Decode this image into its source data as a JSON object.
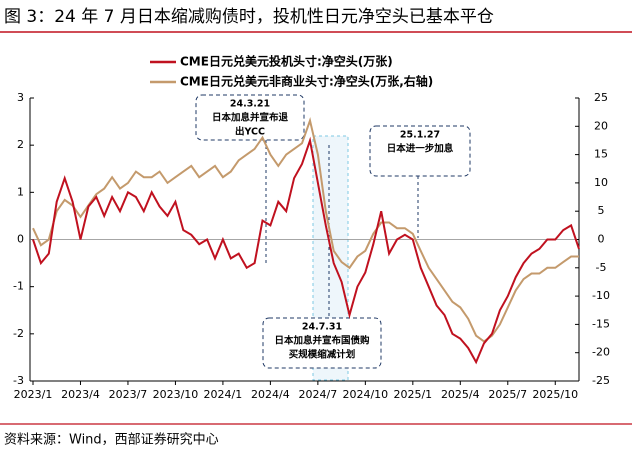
{
  "title": "图 3：24 年 7 月日本缩减购债时，投机性日元净空头已基本平仓",
  "source": "资料来源：Wind，西部证券研究中心",
  "chart_data": {
    "type": "line",
    "categories": [
      "2023/1",
      null,
      null,
      null,
      null,
      null,
      "2023/4",
      null,
      null,
      null,
      null,
      null,
      "2023/7",
      null,
      null,
      null,
      null,
      null,
      "2023/10",
      null,
      null,
      null,
      null,
      null,
      "2024/1",
      null,
      null,
      null,
      null,
      null,
      "2024/4",
      null,
      null,
      null,
      null,
      null,
      "2024/7",
      null,
      null,
      null,
      null,
      null,
      "2024/10",
      null,
      null,
      null,
      null,
      null,
      "2025/1",
      null,
      null,
      null,
      null,
      null,
      "2025/4",
      null,
      null,
      null,
      null,
      null,
      "2025/7",
      null,
      null,
      null,
      null,
      null,
      "2025/10",
      null,
      null,
      null
    ],
    "series": [
      {
        "name": "CME日元兑美元投机头寸:净空头(万张)",
        "color": "#c0111f",
        "axis": "y",
        "values": [
          0,
          -0.5,
          -0.3,
          0.8,
          1.3,
          0.8,
          0.0,
          0.7,
          0.9,
          0.5,
          0.9,
          0.6,
          1.0,
          0.9,
          0.6,
          1.0,
          0.7,
          0.5,
          0.8,
          0.2,
          0.1,
          -0.1,
          0.0,
          -0.4,
          0.0,
          -0.4,
          -0.3,
          -0.6,
          -0.5,
          0.4,
          0.3,
          0.8,
          0.6,
          1.3,
          1.6,
          2.1,
          1.2,
          0.3,
          -0.5,
          -0.9,
          -1.6,
          -1.0,
          -0.7,
          -0.1,
          0.6,
          -0.3,
          0.0,
          0.1,
          0.0,
          -0.6,
          -1.0,
          -1.4,
          -1.6,
          -2.0,
          -2.1,
          -2.3,
          -2.6,
          -2.2,
          -2.0,
          -1.5,
          -1.2,
          -0.8,
          -0.5,
          -0.3,
          -0.2,
          0.0,
          0.0,
          0.2,
          0.3,
          -0.2
        ]
      },
      {
        "name": "CME日元兑美元非商业头寸:净空头(万张,右轴)",
        "color": "#c49a6c",
        "axis": "y2",
        "values": [
          2,
          -1,
          0,
          5,
          7,
          6,
          4,
          6,
          8,
          9,
          11,
          9,
          10,
          12,
          11,
          11,
          12,
          10,
          11,
          12,
          13,
          11,
          12,
          13,
          11,
          12,
          14,
          15,
          16,
          18,
          15,
          13,
          15,
          16,
          17,
          21,
          15,
          5,
          -2,
          -4,
          -5,
          -3,
          -2,
          1,
          3,
          3,
          2,
          2,
          1,
          -2,
          -5,
          -7,
          -9,
          -11,
          -12,
          -14,
          -17,
          -18,
          -17,
          -15,
          -12,
          -9,
          -7,
          -6,
          -6,
          -5,
          -5,
          -4,
          -3,
          -3
        ]
      }
    ],
    "ylim": [
      -3,
      3
    ],
    "yticks": [
      3,
      2,
      1,
      0,
      -1,
      -2,
      -3
    ],
    "y2lim": [
      -25,
      25
    ],
    "y2ticks": [
      25,
      20,
      15,
      10,
      5,
      0,
      -5,
      -10,
      -15,
      -20,
      -25
    ],
    "grid": false,
    "legend": "top-left",
    "annotations": [
      {
        "lines": [
          "24.3.21",
          "日本加息并宣布退",
          "出YCC"
        ]
      },
      {
        "lines": [
          "25.1.27",
          "日本进一步加息"
        ]
      },
      {
        "lines": [
          "24.7.31",
          "日本加息并宣布国债购",
          "买规模缩减计划"
        ]
      }
    ]
  }
}
